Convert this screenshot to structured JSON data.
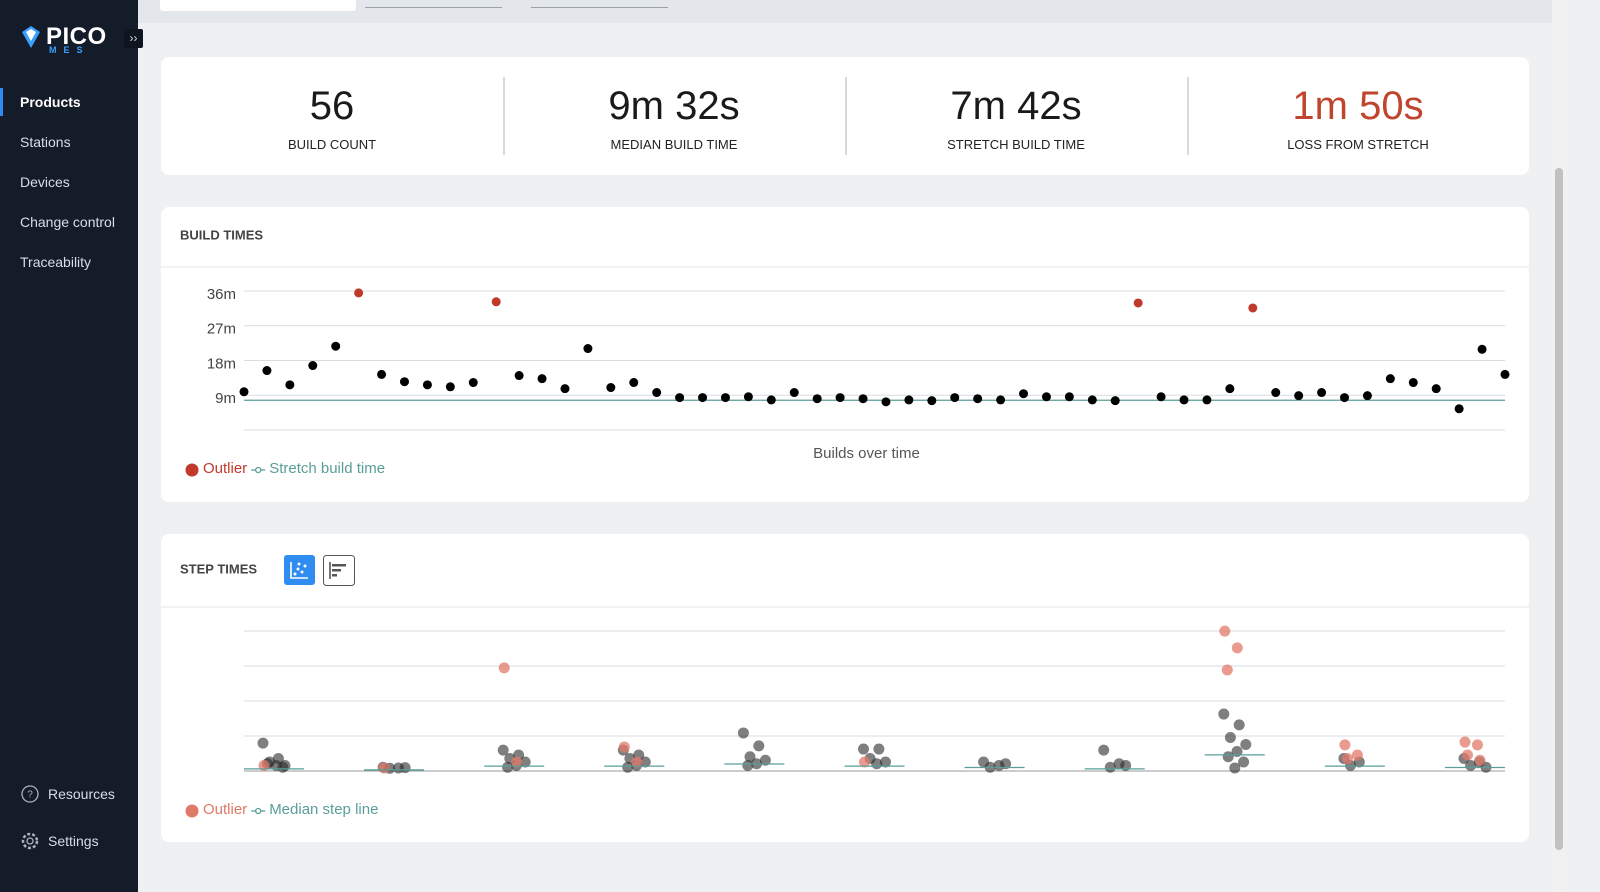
{
  "sidebar": {
    "logo": "PICO",
    "logo_sub": "MES",
    "nav": [
      "Products",
      "Stations",
      "Devices",
      "Change control",
      "Traceability"
    ],
    "active": 0,
    "footer": [
      "Resources",
      "Settings"
    ]
  },
  "kpis": [
    {
      "value": "56",
      "label": "BUILD COUNT"
    },
    {
      "value": "9m 32s",
      "label": "MEDIAN BUILD TIME"
    },
    {
      "value": "7m 42s",
      "label": "STRETCH BUILD TIME"
    },
    {
      "value": "1m 50s",
      "label": "LOSS FROM STRETCH",
      "color": "#c0452f"
    }
  ],
  "build_times": {
    "title": "BUILD TIMES",
    "chart_data": {
      "type": "scatter",
      "xlabel": "Builds over time",
      "series": [
        {
          "color": "#000000",
          "values": [
            9.9,
            15.4,
            11.7,
            16.7,
            21.7,
            null,
            14.4,
            12.5,
            11.7,
            11.2,
            12.3,
            null,
            14.1,
            13.3,
            10.7,
            21.1,
            11.0,
            12.3,
            9.7,
            8.4,
            8.4,
            8.4,
            8.6,
            7.8,
            9.7,
            8.1,
            8.4,
            8.1,
            7.3,
            7.8,
            7.6,
            8.4,
            8.1,
            7.8,
            9.4,
            8.6,
            8.6,
            7.8,
            7.6,
            null,
            8.6,
            7.8,
            7.8,
            10.7,
            null,
            9.7,
            8.9,
            9.7,
            8.4,
            8.9,
            13.3,
            12.3,
            10.7,
            5.5,
            20.9,
            14.4
          ]
        },
        {
          "name": "Outlier",
          "color": "#c0392b",
          "values": [
            null,
            null,
            null,
            null,
            null,
            35.5,
            null,
            null,
            null,
            null,
            null,
            33.2,
            null,
            null,
            null,
            null,
            null,
            null,
            null,
            null,
            null,
            null,
            null,
            null,
            null,
            null,
            null,
            null,
            null,
            null,
            null,
            null,
            null,
            null,
            null,
            null,
            null,
            null,
            null,
            32.9,
            null,
            null,
            null,
            null,
            31.6,
            null,
            null,
            null,
            null,
            null,
            null,
            null,
            null,
            null,
            null,
            null
          ]
        }
      ],
      "reference_line": {
        "name": "Stretch build time",
        "value": 7.7,
        "color": "#5a9e9a"
      },
      "ylim": [
        0,
        36
      ],
      "yticks": [
        {
          "value": 9,
          "label": "9m"
        },
        {
          "value": 18,
          "label": "18m"
        },
        {
          "value": 27,
          "label": "27m"
        },
        {
          "value": 36,
          "label": "36m"
        }
      ],
      "grid": true
    }
  },
  "step_times": {
    "title": "STEP TIMES",
    "chart_data": {
      "type": "scatter",
      "points_color": "#2a2a2a",
      "outliers": {
        "name": "Outlier",
        "color": "#e07a68"
      },
      "median_line": {
        "name": "Median step line",
        "color": "#5a9e9a"
      },
      "ylim": [
        0,
        4
      ],
      "yticks": [
        1,
        2,
        3,
        4
      ],
      "grid": true,
      "groups": [
        {
          "median": 0.06,
          "values": [
            0.74,
            0.3,
            0.2,
            0.1,
            0.1,
            0.15,
            0.05
          ],
          "outliers": [
            0.1
          ]
        },
        {
          "median": 0.03,
          "values": [
            0.05,
            0.03,
            0.02,
            0.04
          ],
          "outliers": [
            0.03
          ]
        },
        {
          "median": 0.14,
          "values": [
            0.54,
            0.4,
            0.3,
            0.2,
            0.1,
            0.05
          ],
          "outliers": [
            2.89,
            0.2
          ]
        },
        {
          "median": 0.14,
          "values": [
            0.54,
            0.4,
            0.3,
            0.2,
            0.1,
            0.05
          ],
          "outliers": [
            0.63,
            0.2
          ]
        },
        {
          "median": 0.2,
          "values": [
            1.03,
            0.66,
            0.35,
            0.25,
            0.15,
            0.1
          ],
          "outliers": []
        },
        {
          "median": 0.14,
          "values": [
            0.57,
            0.57,
            0.3,
            0.2,
            0.15
          ],
          "outliers": [
            0.2
          ]
        },
        {
          "median": 0.1,
          "values": [
            0.2,
            0.1,
            0.05,
            0.15
          ],
          "outliers": []
        },
        {
          "median": 0.06,
          "values": [
            0.54,
            0.15,
            0.05,
            0.1
          ],
          "outliers": []
        },
        {
          "median": 0.46,
          "values": [
            1.57,
            1.26,
            0.9,
            0.7,
            0.5,
            0.35,
            0.2,
            0.03
          ],
          "outliers": [
            3.94,
            3.46,
            2.83
          ]
        },
        {
          "median": 0.14,
          "values": [
            0.3,
            0.2,
            0.1
          ],
          "outliers": [
            0.69,
            0.4,
            0.3
          ]
        },
        {
          "median": 0.1,
          "values": [
            0.3,
            0.2,
            0.1,
            0.05
          ],
          "outliers": [
            0.77,
            0.69,
            0.4,
            0.25
          ]
        }
      ]
    }
  }
}
